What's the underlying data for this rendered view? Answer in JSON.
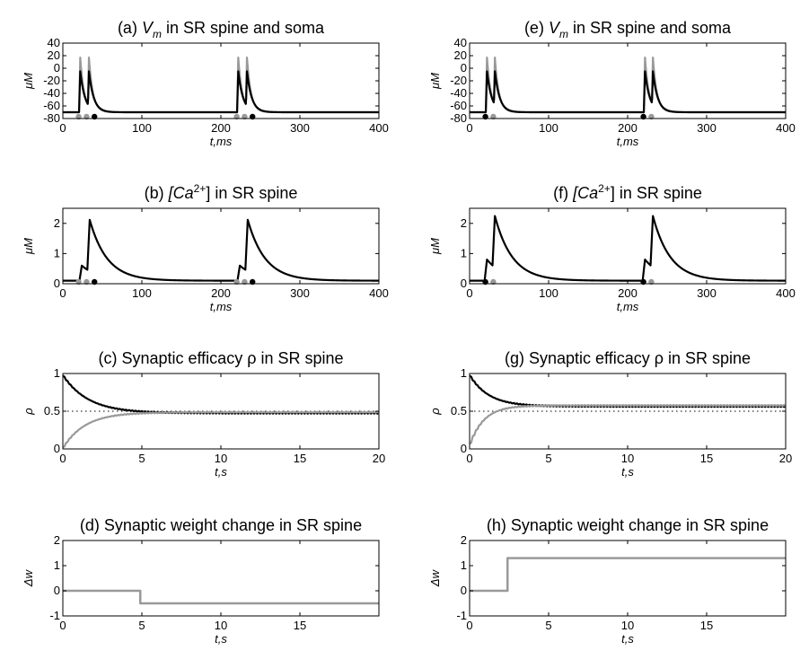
{
  "chart_data": [
    {
      "id": "a",
      "type": "line",
      "title": {
        "pre": "(a) ",
        "main": "V",
        "sub": "m",
        "post": " in SR spine and soma"
      },
      "xlabel": "t,ms",
      "ylabel": "μM",
      "xlim": [
        0,
        400
      ],
      "ylim": [
        -80,
        40
      ],
      "xticks": [
        0,
        100,
        200,
        300,
        400
      ],
      "yticks": [
        -80,
        -60,
        -40,
        -20,
        0,
        20,
        40
      ],
      "baseline": -70,
      "series": [
        {
          "color": "#999999",
          "spikes": [
            22,
            33,
            222,
            233
          ],
          "peak": 17,
          "tau": 5
        },
        {
          "color": "#000000",
          "spikes": [
            22,
            33,
            222,
            233
          ],
          "peak": -5,
          "tau": 6
        }
      ],
      "markers": [
        {
          "x": 20,
          "color": "#999999"
        },
        {
          "x": 30,
          "color": "#999999"
        },
        {
          "x": 40,
          "color": "#000000"
        },
        {
          "x": 220,
          "color": "#999999"
        },
        {
          "x": 230,
          "color": "#999999"
        },
        {
          "x": 240,
          "color": "#000000"
        }
      ]
    },
    {
      "id": "e",
      "type": "line",
      "title": {
        "pre": "(e) ",
        "main": "V",
        "sub": "m",
        "post": " in SR spine and soma"
      },
      "xlabel": "t,ms",
      "ylabel": "μM",
      "xlim": [
        0,
        400
      ],
      "ylim": [
        -80,
        40
      ],
      "xticks": [
        0,
        100,
        200,
        300,
        400
      ],
      "yticks": [
        -80,
        -60,
        -40,
        -20,
        0,
        20,
        40
      ],
      "baseline": -70,
      "series": [
        {
          "color": "#999999",
          "spikes": [
            22,
            32,
            222,
            232
          ],
          "peak": 17,
          "tau": 5
        },
        {
          "color": "#000000",
          "spikes": [
            22,
            32,
            222,
            232
          ],
          "peak": -5,
          "tau": 6
        }
      ],
      "markers": [
        {
          "x": 20,
          "color": "#000000"
        },
        {
          "x": 30,
          "color": "#999999"
        },
        {
          "x": 220,
          "color": "#000000"
        },
        {
          "x": 230,
          "color": "#999999"
        }
      ]
    },
    {
      "id": "b",
      "type": "line",
      "title": {
        "pre": "(b)  ",
        "main": "[Ca",
        "sup": "2+",
        "post": "] in SR spine"
      },
      "xlabel": "t,ms",
      "ylabel": "μM",
      "xlim": [
        0,
        400
      ],
      "ylim": [
        0,
        2.5
      ],
      "xticks": [
        0,
        100,
        200,
        300,
        400
      ],
      "yticks": [
        0,
        1,
        2
      ],
      "series": [
        {
          "color": "#000000",
          "base": 0.1,
          "steps": [
            {
              "t": 24,
              "amp": 0.5
            },
            {
              "t": 34,
              "amp": 1.7
            },
            {
              "t": 224,
              "amp": 0.5
            },
            {
              "t": 234,
              "amp": 1.7
            }
          ],
          "tau": 22
        }
      ],
      "markers": [
        {
          "x": 20,
          "color": "#999999"
        },
        {
          "x": 30,
          "color": "#999999"
        },
        {
          "x": 40,
          "color": "#000000"
        },
        {
          "x": 220,
          "color": "#999999"
        },
        {
          "x": 230,
          "color": "#999999"
        },
        {
          "x": 240,
          "color": "#000000"
        }
      ]
    },
    {
      "id": "f",
      "type": "line",
      "title": {
        "pre": "(f) ",
        "main": "[Ca",
        "sup": "2+",
        "post": "] in SR spine"
      },
      "xlabel": "t,ms",
      "ylabel": "μM",
      "xlim": [
        0,
        400
      ],
      "ylim": [
        0,
        2.5
      ],
      "xticks": [
        0,
        100,
        200,
        300,
        400
      ],
      "yticks": [
        0,
        1,
        2
      ],
      "series": [
        {
          "color": "#000000",
          "base": 0.1,
          "steps": [
            {
              "t": 22,
              "amp": 0.7
            },
            {
              "t": 32,
              "amp": 1.7
            },
            {
              "t": 222,
              "amp": 0.7
            },
            {
              "t": 232,
              "amp": 1.7
            }
          ],
          "tau": 22
        }
      ],
      "markers": [
        {
          "x": 20,
          "color": "#000000"
        },
        {
          "x": 30,
          "color": "#999999"
        },
        {
          "x": 220,
          "color": "#000000"
        },
        {
          "x": 230,
          "color": "#999999"
        }
      ]
    },
    {
      "id": "c",
      "type": "line",
      "title": {
        "pre": "(c) Synaptic efficacy ",
        "main": "ρ",
        "post": " in SR spine"
      },
      "xlabel": "t,s",
      "ylabel": "ρ",
      "xlim": [
        0,
        20
      ],
      "ylim": [
        0,
        1
      ],
      "xticks": [
        0,
        5,
        10,
        15,
        20
      ],
      "yticks": [
        0,
        0.5,
        1
      ],
      "hline": 0.5,
      "series": [
        {
          "color": "#000000",
          "start": 0.97,
          "end": 0.48,
          "tau": 1.6,
          "jag": 0.012
        },
        {
          "color": "#999999",
          "start": 0.02,
          "end": 0.48,
          "tau": 1.4,
          "jag": 0.012
        }
      ]
    },
    {
      "id": "g",
      "type": "line",
      "title": {
        "pre": "(g) Synaptic efficacy ",
        "main": "ρ",
        "post": " in SR spine"
      },
      "xlabel": "t,s",
      "ylabel": "ρ",
      "xlim": [
        0,
        20
      ],
      "ylim": [
        0,
        1
      ],
      "xticks": [
        0,
        5,
        10,
        15,
        20
      ],
      "yticks": [
        0,
        0.5,
        1
      ],
      "hline": 0.5,
      "series": [
        {
          "color": "#000000",
          "start": 0.97,
          "end": 0.57,
          "tau": 1.2,
          "jag": 0.012
        },
        {
          "color": "#999999",
          "start": 0.07,
          "end": 0.57,
          "tau": 0.9,
          "jag": 0.012
        }
      ]
    },
    {
      "id": "d",
      "type": "line",
      "title": {
        "pre": "(d) Synaptic weight change in SR spine"
      },
      "xlabel": "t,s",
      "ylabel": "Δw",
      "xlim": [
        0,
        20
      ],
      "ylim": [
        -1,
        2
      ],
      "xticks": [
        0,
        5,
        10,
        15
      ],
      "yticks": [
        -1,
        0,
        1,
        2
      ],
      "series": [
        {
          "color": "#999999",
          "step": {
            "x": [
              0,
              4.9,
              4.9,
              20
            ],
            "y": [
              0,
              0,
              -0.5,
              -0.5
            ]
          }
        }
      ]
    },
    {
      "id": "h",
      "type": "line",
      "title": {
        "pre": "(h) Synaptic weight change in SR spine"
      },
      "xlabel": "t,s",
      "ylabel": "Δw",
      "xlim": [
        0,
        20
      ],
      "ylim": [
        -1,
        2
      ],
      "xticks": [
        0,
        5,
        10,
        15
      ],
      "yticks": [
        -1,
        0,
        1,
        2
      ],
      "series": [
        {
          "color": "#999999",
          "step": {
            "x": [
              0,
              2.4,
              2.4,
              20
            ],
            "y": [
              0,
              0,
              1.3,
              1.3
            ]
          }
        }
      ]
    }
  ]
}
